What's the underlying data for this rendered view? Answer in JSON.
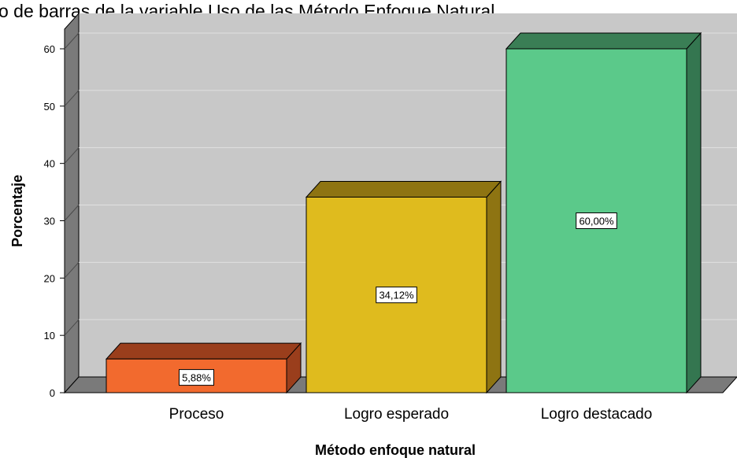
{
  "chart_data": {
    "type": "bar",
    "title": "o de barras de la variable Uso de las Método Enfoque Natural.",
    "xlabel": "Método enfoque natural",
    "ylabel": "Porcentaje",
    "categories": [
      "Proceso",
      "Logro esperado",
      "Logro destacado"
    ],
    "values": [
      5.88,
      34.12,
      60.0
    ],
    "data_labels": [
      "5,88%",
      "34,12%",
      "60,00%"
    ],
    "yticks": [
      0,
      10,
      20,
      30,
      40,
      50,
      60
    ],
    "ylim": [
      0,
      63
    ],
    "grid": true,
    "three_d": true,
    "colors": {
      "bars": [
        "#f26a2e",
        "#dfbb1e",
        "#5bc98a"
      ],
      "bar_tops": [
        "#9a3e1c",
        "#8e7412",
        "#3a7e55"
      ],
      "bar_sides": [
        "#9a3e1c",
        "#8e7412",
        "#347650"
      ],
      "plot_background": "#c8c8c8",
      "back_wall_side": "#7a7a7a",
      "floor": "#7a7a7a",
      "grid": "#e0e0e0"
    }
  }
}
